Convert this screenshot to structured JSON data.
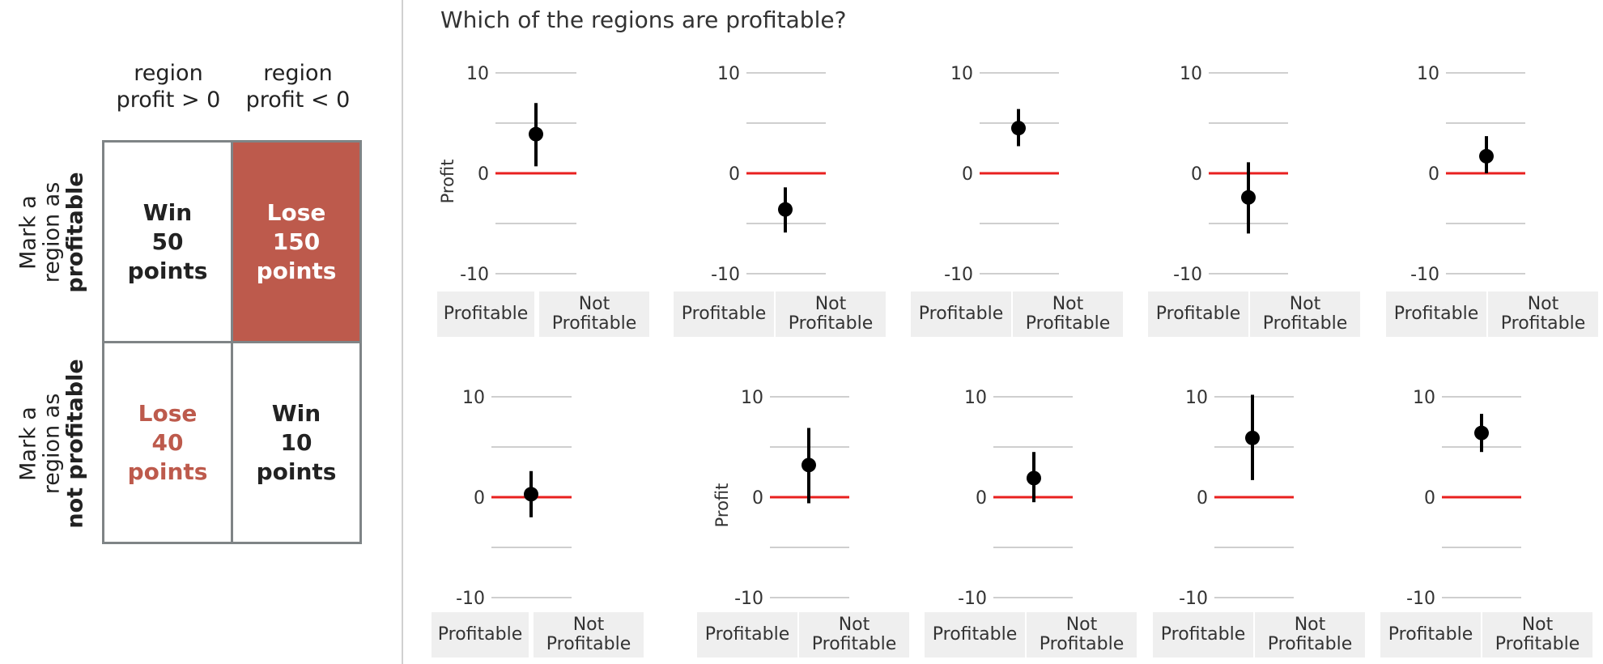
{
  "payoff": {
    "col_headers": [
      "region\nprofit > 0",
      "region\nprofit < 0"
    ],
    "row_headers": [
      {
        "line1": "Mark a",
        "line2": "region as",
        "bold": "profitable"
      },
      {
        "line1": "Mark a",
        "line2": "region as",
        "bold": "not profitable"
      }
    ],
    "cells": [
      [
        "Win\n50\npoints",
        "Lose\n150\npoints"
      ],
      [
        "Lose\n40\npoints",
        "Win\n10\npoints"
      ]
    ],
    "colors": {
      "lose_fill": "#bd5a4c",
      "lose_text": "#bd5a4c",
      "border": "#7f8486"
    }
  },
  "question": "Which of the regions are profitable?",
  "buttons": {
    "profitable": "Profitable",
    "not_profitable": "Not\nProfitable"
  },
  "chart_data": {
    "type": "scatter",
    "ylabel": "Profit",
    "ylim": [
      -10,
      10
    ],
    "yticks": [
      -10,
      0,
      10
    ],
    "gridlines": [
      -10,
      -5,
      0,
      5,
      10
    ],
    "reference_line": {
      "y": 0,
      "color": "#e8201f"
    },
    "point_color": "#000000",
    "panels": [
      {
        "estimate": 3.9,
        "low": 0.7,
        "high": 7.0
      },
      {
        "estimate": -3.6,
        "low": -5.9,
        "high": -1.4
      },
      {
        "estimate": 4.5,
        "low": 2.7,
        "high": 6.4
      },
      {
        "estimate": -2.4,
        "low": -6.0,
        "high": 1.1
      },
      {
        "estimate": 1.7,
        "low": 0.0,
        "high": 3.7
      },
      {
        "estimate": 0.3,
        "low": -2.0,
        "high": 2.6
      },
      {
        "estimate": 3.2,
        "low": -0.6,
        "high": 6.9
      },
      {
        "estimate": 1.9,
        "low": -0.5,
        "high": 4.5
      },
      {
        "estimate": 5.9,
        "low": 1.7,
        "high": 10.2
      },
      {
        "estimate": 6.4,
        "low": 4.5,
        "high": 8.3
      }
    ]
  }
}
